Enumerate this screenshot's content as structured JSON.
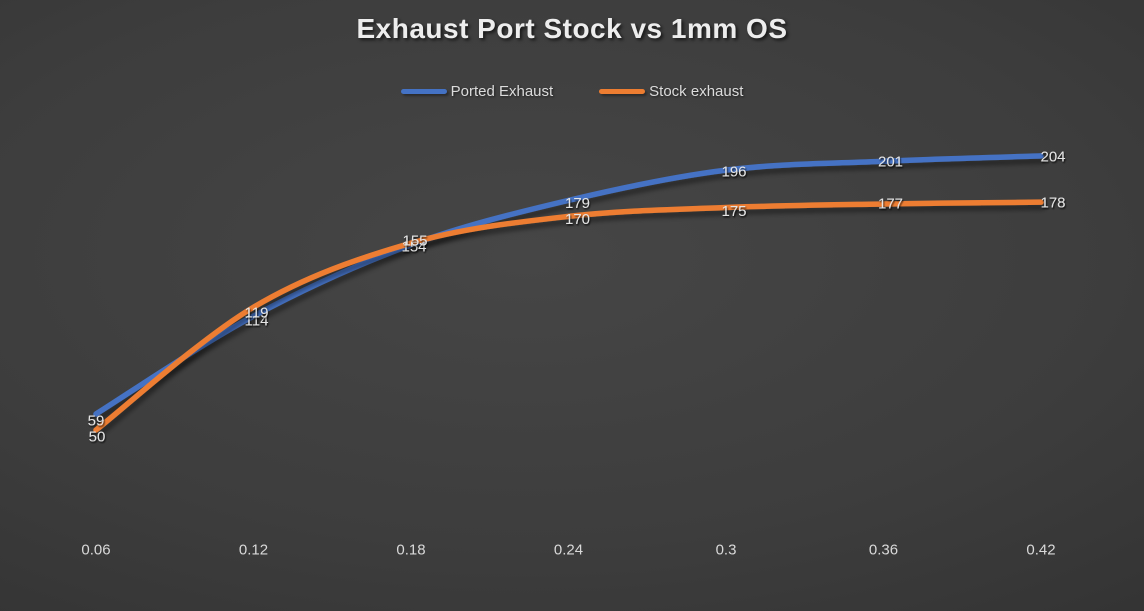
{
  "title": "Exhaust Port Stock vs 1mm OS",
  "legend": [
    {
      "label": "Ported Exhaust",
      "color": "#4472C4"
    },
    {
      "label": "Stock exhaust",
      "color": "#ED7D31"
    }
  ],
  "chart_data": {
    "type": "line",
    "smooth": true,
    "grid": false,
    "legend_position": "top",
    "data_labels": true,
    "title": "Exhaust Port Stock vs 1mm OS",
    "xlabel": "",
    "ylabel": "",
    "categories": [
      "0.06",
      "0.12",
      "0.18",
      "0.24",
      "0.3",
      "0.36",
      "0.42"
    ],
    "series": [
      {
        "name": "Ported Exhaust",
        "color": "#4472C4",
        "values": [
          59,
          114,
          154,
          179,
          196,
          201,
          204
        ]
      },
      {
        "name": "Stock exhaust",
        "color": "#ED7D31",
        "values": [
          50,
          119,
          155,
          170,
          175,
          177,
          178
        ]
      }
    ],
    "ylim": [
      0,
      250
    ]
  },
  "colors": {
    "background_center": "#464646",
    "background_edge": "#262626",
    "title_text": "#ededed",
    "label_text": "#e4e4e4",
    "axis_text": "#d9d9d9"
  }
}
